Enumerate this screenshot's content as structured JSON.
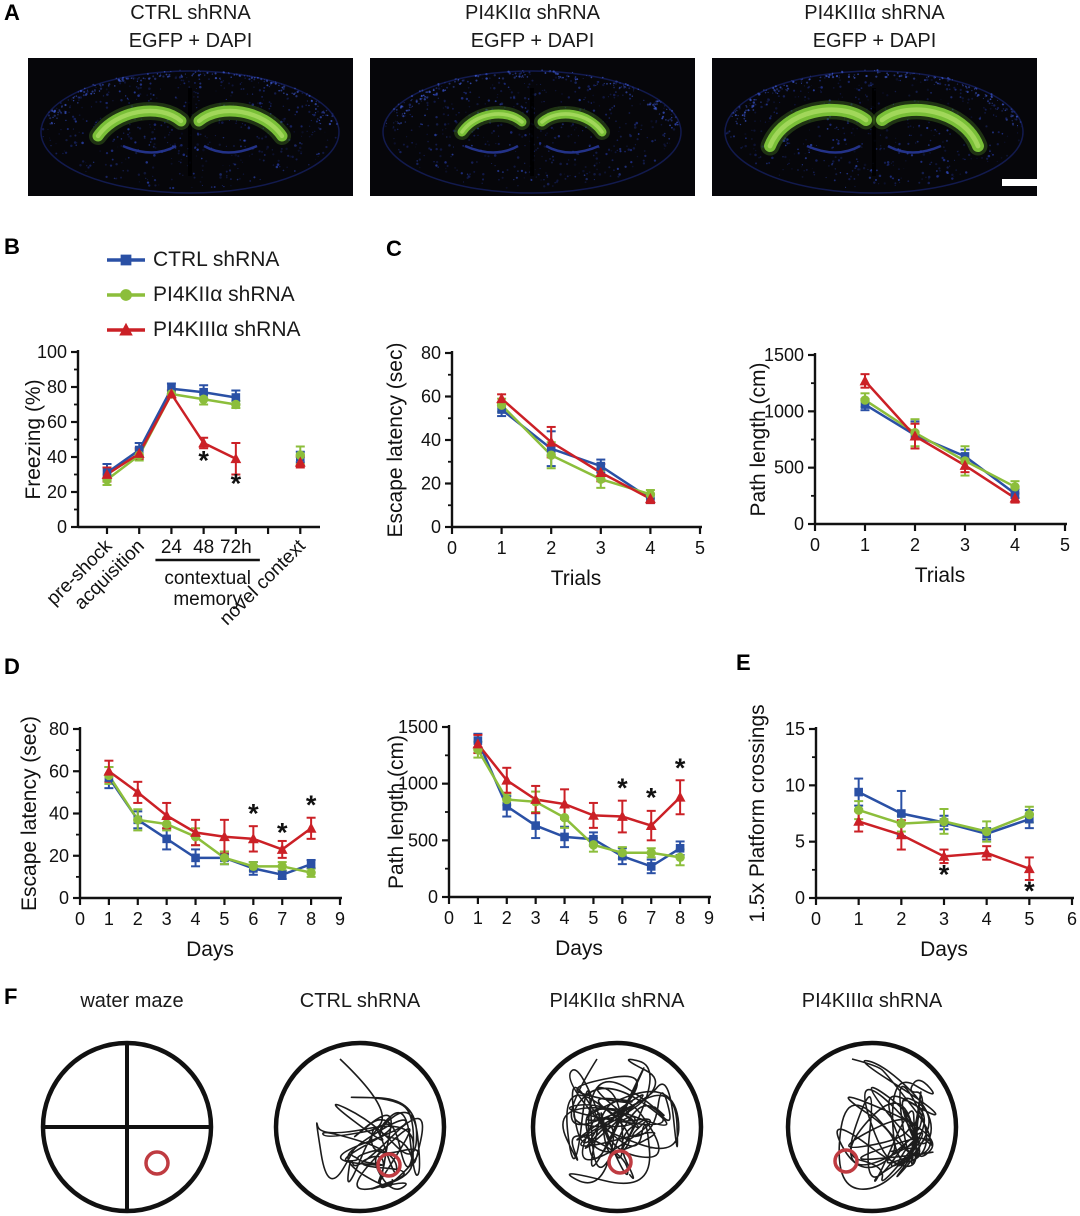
{
  "panels": {
    "a": "A",
    "b": "B",
    "c": "C",
    "d": "D",
    "e": "E",
    "f": "F"
  },
  "panel_a": {
    "columns": [
      {
        "title_line1": "CTRL shRNA",
        "title_line2": "EGFP + DAPI"
      },
      {
        "title_line1": "PI4KIIα shRNA",
        "title_line2": "EGFP + DAPI"
      },
      {
        "title_line1": "PI4KIIIα shRNA",
        "title_line2": "EGFP + DAPI"
      }
    ],
    "stain_colors": {
      "egfp_green": "#79BF37",
      "dapi_blue": "#2B3DA8"
    },
    "scale_bar": "present-bottom-right-of-third-image"
  },
  "legend": {
    "items": [
      {
        "label": "CTRL shRNA",
        "color": "#2A50A5",
        "marker": "square"
      },
      {
        "label": "PI4KIIα shRNA",
        "color": "#8CBE3B",
        "marker": "circle"
      },
      {
        "label": "PI4KIIIα shRNA",
        "color": "#CB2026",
        "marker": "triangle"
      }
    ]
  },
  "chart_data": [
    {
      "id": "B",
      "type": "line",
      "ylabel": "Freezing (%)",
      "xlabel": "",
      "ylim": [
        0,
        100
      ],
      "yticks": [
        0,
        20,
        40,
        60,
        80,
        100
      ],
      "yminor": 10,
      "xlim": [
        0.1,
        7.55
      ],
      "xticks": [
        1,
        2,
        3,
        4,
        5,
        6,
        7
      ],
      "xtick_labels": {
        "1": "pre-shock",
        "2": "acquisition",
        "3": "24",
        "4": "48",
        "5": "72h",
        "7": "novel context"
      },
      "xtick_style": {
        "1": "rot",
        "2": "rot",
        "3": "h",
        "4": "h",
        "5": "h",
        "7": "rot"
      },
      "bracket": {
        "from": 3,
        "to": 5,
        "lines": [
          "contextual",
          "memory"
        ]
      },
      "x": [
        1,
        2,
        3,
        4,
        5,
        7
      ],
      "line_points": 5,
      "series": [
        {
          "name": "CTRL shRNA",
          "color": "#2A50A5",
          "marker": "square",
          "y": [
            31,
            44,
            79,
            77,
            74,
            40
          ],
          "err": [
            5,
            4,
            3,
            4,
            4,
            3
          ]
        },
        {
          "name": "PI4KIIα shRNA",
          "color": "#8CBE3B",
          "marker": "circle",
          "y": [
            27,
            41,
            76,
            73,
            70,
            41
          ],
          "err": [
            3,
            3,
            2,
            3,
            2,
            5
          ]
        },
        {
          "name": "PI4KIIIα shRNA",
          "color": "#CB2026",
          "marker": "triangle",
          "y": [
            30,
            42,
            76,
            48,
            39,
            37
          ],
          "err": [
            4,
            3,
            2,
            3,
            9,
            3
          ]
        }
      ],
      "annotations": [
        {
          "x": 4,
          "y": 38,
          "t": "*"
        },
        {
          "x": 5,
          "y": 25,
          "t": "*"
        }
      ]
    },
    {
      "id": "C1",
      "type": "line",
      "ylabel": "Escape latency (sec)",
      "xlabel": "Trials",
      "ylim": [
        0,
        80
      ],
      "yticks": [
        0,
        20,
        40,
        60,
        80
      ],
      "yminor": 10,
      "xlim": [
        0,
        5
      ],
      "xticks": [
        0,
        1,
        2,
        3,
        4,
        5
      ],
      "x": [
        1,
        2,
        3,
        4
      ],
      "series": [
        {
          "name": "CTRL shRNA",
          "color": "#2A50A5",
          "marker": "square",
          "y": [
            54,
            36,
            28,
            13
          ],
          "err": [
            3,
            8,
            3,
            2
          ]
        },
        {
          "name": "PI4KIIα shRNA",
          "color": "#8CBE3B",
          "marker": "circle",
          "y": [
            56,
            33,
            22,
            15
          ],
          "err": [
            3,
            6,
            4,
            2
          ]
        },
        {
          "name": "PI4KIIIα shRNA",
          "color": "#CB2026",
          "marker": "triangle",
          "y": [
            59,
            39,
            25,
            13
          ],
          "err": [
            2,
            7,
            4,
            2
          ]
        }
      ],
      "annotations": []
    },
    {
      "id": "C2",
      "type": "line",
      "ylabel": "Path length (cm)",
      "xlabel": "Trials",
      "ylim": [
        0,
        1500
      ],
      "yticks": [
        0,
        500,
        1000,
        1500
      ],
      "yminor": 250,
      "xlim": [
        0,
        5
      ],
      "xticks": [
        0,
        1,
        2,
        3,
        4,
        5
      ],
      "x": [
        1,
        2,
        3,
        4
      ],
      "series": [
        {
          "name": "CTRL shRNA",
          "color": "#2A50A5",
          "marker": "square",
          "y": [
            1060,
            790,
            600,
            270
          ],
          "err": [
            50,
            120,
            60,
            40
          ]
        },
        {
          "name": "PI4KIIα shRNA",
          "color": "#8CBE3B",
          "marker": "circle",
          "y": [
            1100,
            810,
            560,
            330
          ],
          "err": [
            60,
            120,
            130,
            50
          ]
        },
        {
          "name": "PI4KIIIα shRNA",
          "color": "#CB2026",
          "marker": "triangle",
          "y": [
            1270,
            780,
            520,
            230
          ],
          "err": [
            60,
            110,
            60,
            40
          ]
        }
      ],
      "annotations": []
    },
    {
      "id": "D1",
      "type": "line",
      "ylabel": "Escape latency (sec)",
      "xlabel": "Days",
      "ylim": [
        0,
        80
      ],
      "yticks": [
        0,
        20,
        40,
        60,
        80
      ],
      "yminor": 10,
      "xlim": [
        0,
        9
      ],
      "xticks": [
        0,
        1,
        2,
        3,
        4,
        5,
        6,
        7,
        8,
        9
      ],
      "x": [
        1,
        2,
        3,
        4,
        5,
        6,
        7,
        8
      ],
      "series": [
        {
          "name": "CTRL shRNA",
          "color": "#2A50A5",
          "marker": "square",
          "y": [
            57,
            37,
            28,
            19,
            19,
            14,
            11,
            16
          ],
          "err": [
            5,
            4,
            5,
            4,
            3,
            3,
            2,
            2
          ]
        },
        {
          "name": "PI4KIIα shRNA",
          "color": "#8CBE3B",
          "marker": "circle",
          "y": [
            58,
            37,
            35,
            29,
            19,
            15,
            15,
            12
          ],
          "err": [
            4,
            5,
            3,
            4,
            3,
            2,
            2,
            2
          ]
        },
        {
          "name": "PI4KIIIα shRNA",
          "color": "#CB2026",
          "marker": "triangle",
          "y": [
            60,
            50,
            39,
            31,
            29,
            28,
            23,
            33
          ],
          "err": [
            5,
            5,
            6,
            6,
            8,
            6,
            4,
            5
          ]
        }
      ],
      "annotations": [
        {
          "x": 6,
          "y": 40,
          "t": "*"
        },
        {
          "x": 7,
          "y": 31,
          "t": "*"
        },
        {
          "x": 8,
          "y": 44,
          "t": "*"
        }
      ]
    },
    {
      "id": "D2",
      "type": "line",
      "ylabel": "Path length (cm)",
      "xlabel": "Days",
      "ylim": [
        0,
        1500
      ],
      "yticks": [
        0,
        500,
        1000,
        1500
      ],
      "yminor": 250,
      "xlim": [
        0,
        9
      ],
      "xticks": [
        0,
        1,
        2,
        3,
        4,
        5,
        6,
        7,
        8,
        9
      ],
      "x": [
        1,
        2,
        3,
        4,
        5,
        6,
        7,
        8
      ],
      "series": [
        {
          "name": "CTRL shRNA",
          "color": "#2A50A5",
          "marker": "square",
          "y": [
            1380,
            800,
            630,
            530,
            510,
            360,
            270,
            430
          ],
          "err": [
            60,
            90,
            110,
            90,
            60,
            70,
            60,
            60
          ]
        },
        {
          "name": "PI4KIIα shRNA",
          "color": "#8CBE3B",
          "marker": "circle",
          "y": [
            1300,
            860,
            840,
            700,
            460,
            390,
            390,
            350
          ],
          "err": [
            70,
            50,
            90,
            90,
            60,
            50,
            40,
            70
          ]
        },
        {
          "name": "PI4KIIIα shRNA",
          "color": "#CB2026",
          "marker": "triangle",
          "y": [
            1350,
            1030,
            860,
            820,
            720,
            710,
            630,
            880
          ],
          "err": [
            80,
            110,
            120,
            130,
            110,
            140,
            130,
            150
          ]
        }
      ],
      "annotations": [
        {
          "x": 6,
          "y": 960,
          "t": "*"
        },
        {
          "x": 7,
          "y": 880,
          "t": "*"
        },
        {
          "x": 8,
          "y": 1140,
          "t": "*"
        }
      ]
    },
    {
      "id": "E",
      "type": "line",
      "ylabel": "1.5x Platform crossings",
      "xlabel": "Days",
      "ylim": [
        0,
        15
      ],
      "yticks": [
        0,
        5,
        10,
        15
      ],
      "yminor": 2.5,
      "xlim": [
        0,
        6
      ],
      "xticks": [
        0,
        1,
        2,
        3,
        4,
        5,
        6
      ],
      "x": [
        1,
        2,
        3,
        4,
        5
      ],
      "series": [
        {
          "name": "CTRL shRNA",
          "color": "#2A50A5",
          "marker": "square",
          "y": [
            9.4,
            7.5,
            6.7,
            5.7,
            7.0
          ],
          "err": [
            1.2,
            2.0,
            0.6,
            0.5,
            0.8
          ]
        },
        {
          "name": "PI4KIIα shRNA",
          "color": "#8CBE3B",
          "marker": "circle",
          "y": [
            7.8,
            6.6,
            6.8,
            5.9,
            7.4
          ],
          "err": [
            0.8,
            0.7,
            1.1,
            0.9,
            0.7
          ]
        },
        {
          "name": "PI4KIIIα shRNA",
          "color": "#CB2026",
          "marker": "triangle",
          "y": [
            6.8,
            5.6,
            3.7,
            4.0,
            2.6
          ],
          "err": [
            0.9,
            1.3,
            0.6,
            0.6,
            1.0
          ]
        }
      ],
      "annotations": [
        {
          "x": 3,
          "y": 2.1,
          "t": "*"
        },
        {
          "x": 5,
          "y": 0.6,
          "t": "*"
        }
      ]
    }
  ],
  "panel_f": {
    "items": [
      {
        "title": "water maze",
        "kind": "schematic"
      },
      {
        "title": "CTRL shRNA",
        "kind": "trace-focal"
      },
      {
        "title": "PI4KIIα shRNA",
        "kind": "trace-dense"
      },
      {
        "title": "PI4KIIIα shRNA",
        "kind": "trace-periphery"
      }
    ],
    "platform_color": "#BF3B41"
  }
}
